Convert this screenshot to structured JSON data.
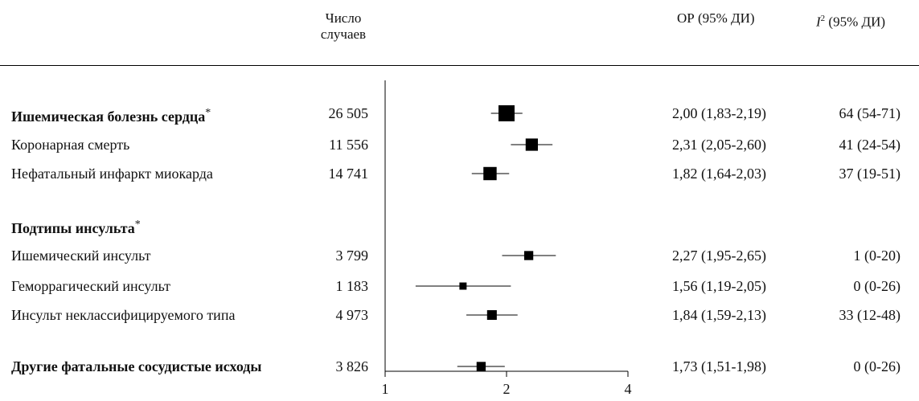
{
  "headers": {
    "cases_line1": "Число",
    "cases_line2": "случаев",
    "or": "ОР (95% ДИ)",
    "i2_sym": "I",
    "i2_sup": "2",
    "i2_rest": " (95% ДИ)"
  },
  "rows": [
    {
      "label": "Ишемическая болезнь сердца",
      "star": "*",
      "bold": true,
      "cases": "26 505",
      "or_text": "2,00 (1,83-2,19)",
      "i2_text": "64 (54-71)"
    },
    {
      "label": "Коронарная смерть",
      "star": "",
      "bold": false,
      "cases": "11 556",
      "or_text": "2,31 (2,05-2,60)",
      "i2_text": "41 (24-54)"
    },
    {
      "label": "Нефатальный инфаркт миокарда",
      "star": "",
      "bold": false,
      "cases": "14 741",
      "or_text": "1,82 (1,64-2,03)",
      "i2_text": "37 (19-51)"
    },
    {
      "label": "Подтипы инсульта",
      "star": "*",
      "bold": true,
      "cases": "",
      "or_text": "",
      "i2_text": ""
    },
    {
      "label": "Ишемический инсульт",
      "star": "",
      "bold": false,
      "cases": "3 799",
      "or_text": "2,27 (1,95-2,65)",
      "i2_text": "1 (0-20)"
    },
    {
      "label": "Геморрагический инсульт",
      "star": "",
      "bold": false,
      "cases": "1 183",
      "or_text": "1,56 (1,19-2,05)",
      "i2_text": "0 (0-26)"
    },
    {
      "label": "Инсульт неклассифицируемого типа",
      "star": "",
      "bold": false,
      "cases": "4 973",
      "or_text": "1,84 (1,59-2,13)",
      "i2_text": "33 (12-48)"
    },
    {
      "label": "Другие фатальные сосудистые исходы",
      "star": "",
      "bold": true,
      "cases": "3 826",
      "or_text": "1,73 (1,51-1,98)",
      "i2_text": "0 (0-26)"
    }
  ],
  "chart_data": {
    "type": "forest",
    "x_scale": "log",
    "xlim": [
      1,
      4
    ],
    "x_ticks": [
      1,
      2,
      4
    ],
    "x_tick_labels": [
      "1",
      "2",
      "4"
    ],
    "reference_line": 1,
    "points": [
      {
        "row": 0,
        "estimate": 2.0,
        "lower": 1.83,
        "upper": 2.19,
        "weight": 26505
      },
      {
        "row": 1,
        "estimate": 2.31,
        "lower": 2.05,
        "upper": 2.6,
        "weight": 11556
      },
      {
        "row": 2,
        "estimate": 1.82,
        "lower": 1.64,
        "upper": 2.03,
        "weight": 14741
      },
      {
        "row": 4,
        "estimate": 2.27,
        "lower": 1.95,
        "upper": 2.65,
        "weight": 3799
      },
      {
        "row": 5,
        "estimate": 1.56,
        "lower": 1.19,
        "upper": 2.05,
        "weight": 1183
      },
      {
        "row": 6,
        "estimate": 1.84,
        "lower": 1.59,
        "upper": 2.13,
        "weight": 4973
      },
      {
        "row": 7,
        "estimate": 1.73,
        "lower": 1.51,
        "upper": 1.98,
        "weight": 3826
      }
    ]
  }
}
